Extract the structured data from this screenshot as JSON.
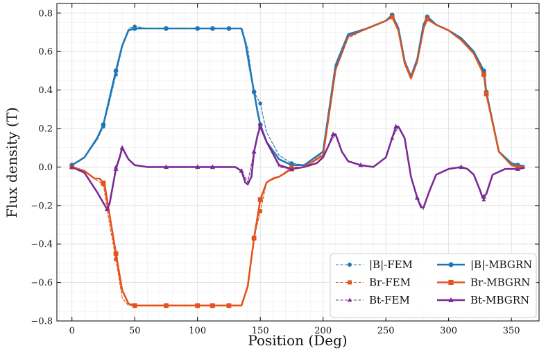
{
  "chart_data": {
    "type": "line",
    "xlabel": "Position (Deg)",
    "ylabel": "Flux density (T)",
    "xlim": [
      -12,
      372
    ],
    "ylim": [
      -0.8,
      0.85
    ],
    "xticks": [
      "0",
      "50",
      "100",
      "150",
      "200",
      "250",
      "300",
      "350"
    ],
    "yticks": [
      "−0.8",
      "−0.6",
      "−0.4",
      "−0.2",
      "0.0",
      "0.2",
      "0.4",
      "0.6",
      "0.8"
    ],
    "grid": true,
    "legend_position": "bottom-right",
    "legend": [
      "|B|-FEM",
      "Br-FEM",
      "Bt-FEM",
      "|B|-MBGRN",
      "Br-MBGRN",
      "Bt-MBGRN"
    ],
    "colors": {
      "B": "#1f77b4",
      "Br": "#e2541d",
      "Bt": "#7b2a96"
    },
    "series": [
      {
        "name": "|B|-FEM",
        "style": "dashed",
        "marker": "circle",
        "color": "#1f77b4",
        "x": [
          0,
          10,
          20,
          25,
          30,
          35,
          40,
          45,
          50,
          60,
          75,
          90,
          100,
          110,
          125,
          135,
          140,
          145,
          150,
          155,
          165,
          175,
          185,
          200,
          210,
          220,
          235,
          250,
          255,
          260,
          265,
          270,
          275,
          280,
          283,
          285,
          290,
          300,
          310,
          320,
          328,
          330,
          340,
          350,
          355,
          360
        ],
        "y": [
          0.01,
          0.05,
          0.14,
          0.21,
          0.34,
          0.48,
          0.62,
          0.72,
          0.73,
          0.72,
          0.72,
          0.72,
          0.72,
          0.72,
          0.72,
          0.72,
          0.62,
          0.39,
          0.33,
          0.18,
          0.06,
          0.02,
          0.01,
          0.08,
          0.51,
          0.68,
          0.72,
          0.76,
          0.79,
          0.73,
          0.55,
          0.47,
          0.55,
          0.74,
          0.78,
          0.77,
          0.74,
          0.71,
          0.67,
          0.6,
          0.5,
          0.38,
          0.08,
          0.02,
          0.01,
          0.005
        ],
        "markers_at": [
          0,
          25,
          35,
          50,
          75,
          100,
          112,
          125,
          145,
          150,
          175,
          255,
          283,
          328,
          330,
          355
        ]
      },
      {
        "name": "Br-FEM",
        "style": "dashed",
        "marker": "square",
        "color": "#e2541d",
        "x": [
          0,
          10,
          20,
          25,
          30,
          35,
          40,
          45,
          50,
          60,
          75,
          90,
          100,
          110,
          125,
          135,
          140,
          145,
          150,
          155,
          165,
          175,
          185,
          200,
          210,
          220,
          235,
          250,
          255,
          260,
          265,
          270,
          275,
          280,
          283,
          285,
          290,
          300,
          310,
          320,
          328,
          330,
          340,
          350,
          355,
          360
        ],
        "y": [
          0,
          -0.02,
          -0.07,
          -0.09,
          -0.3,
          -0.48,
          -0.68,
          -0.72,
          -0.72,
          -0.72,
          -0.72,
          -0.72,
          -0.72,
          -0.72,
          -0.72,
          -0.72,
          -0.63,
          -0.37,
          -0.23,
          -0.08,
          -0.05,
          0,
          0,
          0.07,
          0.5,
          0.67,
          0.72,
          0.76,
          0.78,
          0.71,
          0.55,
          0.47,
          0.54,
          0.72,
          0.77,
          0.76,
          0.74,
          0.71,
          0.66,
          0.59,
          0.48,
          0.38,
          0.08,
          0.01,
          0,
          0
        ],
        "markers_at": [
          0,
          25,
          35,
          50,
          75,
          100,
          112,
          125,
          145,
          150,
          175,
          255,
          283,
          328,
          330,
          355
        ]
      },
      {
        "name": "Bt-FEM",
        "style": "dashed",
        "marker": "triangle",
        "color": "#7b2a96",
        "x": [
          0,
          10,
          20,
          28,
          30,
          35,
          38,
          40,
          45,
          50,
          60,
          75,
          90,
          100,
          110,
          125,
          130,
          135,
          140,
          145,
          150,
          155,
          165,
          175,
          185,
          195,
          200,
          205,
          210,
          215,
          220,
          230,
          240,
          250,
          255,
          260,
          265,
          270,
          275,
          280,
          285,
          290,
          300,
          310,
          315,
          320,
          325,
          328,
          330,
          335,
          345,
          355,
          360
        ],
        "y": [
          0,
          -0.03,
          -0.13,
          -0.22,
          -0.18,
          0.0,
          0.06,
          0.1,
          0.04,
          0.01,
          0,
          0,
          0,
          0,
          0,
          0,
          0,
          -0.02,
          -0.08,
          0.08,
          0.22,
          0.13,
          0.0,
          -0.01,
          0,
          0.02,
          0.05,
          0.12,
          0.17,
          0.08,
          0.03,
          0.01,
          0.0,
          0.05,
          0.15,
          0.21,
          0.15,
          -0.05,
          -0.16,
          -0.22,
          -0.12,
          -0.04,
          -0.01,
          0,
          -0.01,
          -0.04,
          -0.12,
          -0.17,
          -0.14,
          -0.04,
          -0.01,
          -0.01,
          -0.005
        ],
        "markers_at": [
          0,
          28,
          35,
          40,
          75,
          100,
          112,
          135,
          145,
          150,
          175,
          230,
          255,
          275,
          310,
          328,
          355
        ]
      },
      {
        "name": "|B|-MBGRN",
        "style": "solid",
        "marker": "circle",
        "color": "#1f77b4",
        "x": [
          0,
          10,
          20,
          25,
          30,
          35,
          40,
          45,
          50,
          60,
          75,
          90,
          100,
          110,
          125,
          135,
          138,
          142,
          145,
          148,
          150,
          155,
          165,
          175,
          185,
          200,
          210,
          220,
          235,
          250,
          255,
          260,
          265,
          270,
          275,
          280,
          283,
          285,
          290,
          300,
          310,
          320,
          328,
          330,
          340,
          350,
          355,
          360
        ],
        "y": [
          0.01,
          0.05,
          0.15,
          0.22,
          0.36,
          0.5,
          0.63,
          0.71,
          0.72,
          0.72,
          0.72,
          0.72,
          0.72,
          0.72,
          0.72,
          0.72,
          0.65,
          0.5,
          0.39,
          0.28,
          0.22,
          0.13,
          0.04,
          0.01,
          0.01,
          0.08,
          0.53,
          0.69,
          0.72,
          0.76,
          0.79,
          0.72,
          0.55,
          0.47,
          0.56,
          0.74,
          0.78,
          0.77,
          0.74,
          0.71,
          0.67,
          0.6,
          0.5,
          0.39,
          0.08,
          0.02,
          0.01,
          0.005
        ],
        "markers_at": [
          0,
          25,
          35,
          50,
          75,
          100,
          112,
          125,
          145,
          150,
          175,
          255,
          283,
          328,
          330,
          355
        ]
      },
      {
        "name": "Br-MBGRN",
        "style": "solid",
        "marker": "square",
        "color": "#e2541d",
        "x": [
          0,
          10,
          18,
          22,
          26,
          30,
          35,
          40,
          45,
          50,
          60,
          75,
          90,
          100,
          110,
          125,
          135,
          140,
          142,
          145,
          148,
          150,
          155,
          160,
          165,
          175,
          185,
          200,
          210,
          220,
          235,
          250,
          255,
          260,
          265,
          270,
          275,
          280,
          283,
          285,
          290,
          300,
          310,
          320,
          328,
          330,
          340,
          350,
          355,
          360
        ],
        "y": [
          0,
          -0.02,
          -0.06,
          -0.06,
          -0.09,
          -0.25,
          -0.45,
          -0.64,
          -0.71,
          -0.72,
          -0.72,
          -0.72,
          -0.72,
          -0.72,
          -0.72,
          -0.72,
          -0.72,
          -0.62,
          -0.52,
          -0.37,
          -0.25,
          -0.17,
          -0.08,
          -0.06,
          -0.05,
          -0.01,
          0,
          0.06,
          0.51,
          0.68,
          0.72,
          0.76,
          0.78,
          0.71,
          0.54,
          0.46,
          0.55,
          0.72,
          0.77,
          0.76,
          0.74,
          0.71,
          0.66,
          0.59,
          0.48,
          0.38,
          0.08,
          0.01,
          0,
          0
        ],
        "markers_at": [
          0,
          25,
          35,
          50,
          75,
          100,
          112,
          125,
          145,
          150,
          175,
          255,
          283,
          328,
          330,
          355
        ]
      },
      {
        "name": "Bt-MBGRN",
        "style": "solid",
        "marker": "triangle",
        "color": "#7b2a96",
        "x": [
          0,
          10,
          20,
          28,
          30,
          35,
          38,
          40,
          45,
          50,
          60,
          75,
          90,
          100,
          110,
          125,
          130,
          135,
          138,
          140,
          143,
          145,
          148,
          150,
          155,
          165,
          175,
          185,
          195,
          200,
          205,
          208,
          210,
          215,
          220,
          230,
          240,
          250,
          255,
          258,
          260,
          265,
          270,
          275,
          278,
          280,
          285,
          290,
          300,
          310,
          315,
          320,
          325,
          327,
          330,
          335,
          345,
          355,
          360
        ],
        "y": [
          0,
          -0.03,
          -0.13,
          -0.22,
          -0.19,
          -0.01,
          0.05,
          0.1,
          0.04,
          0.01,
          0,
          0,
          0,
          0,
          0,
          0,
          0,
          -0.02,
          -0.08,
          -0.09,
          -0.05,
          0.08,
          0.17,
          0.21,
          0.13,
          0.01,
          -0.01,
          0,
          0.02,
          0.05,
          0.12,
          0.17,
          0.17,
          0.08,
          0.03,
          0.01,
          0.0,
          0.05,
          0.15,
          0.21,
          0.21,
          0.15,
          -0.05,
          -0.16,
          -0.21,
          -0.21,
          -0.12,
          -0.04,
          -0.01,
          0,
          -0.01,
          -0.04,
          -0.12,
          -0.16,
          -0.14,
          -0.04,
          -0.01,
          -0.01,
          -0.005
        ],
        "markers_at": [
          0,
          28,
          35,
          40,
          75,
          100,
          112,
          135,
          145,
          150,
          175,
          208,
          230,
          258,
          275,
          310,
          328,
          355
        ]
      }
    ]
  }
}
